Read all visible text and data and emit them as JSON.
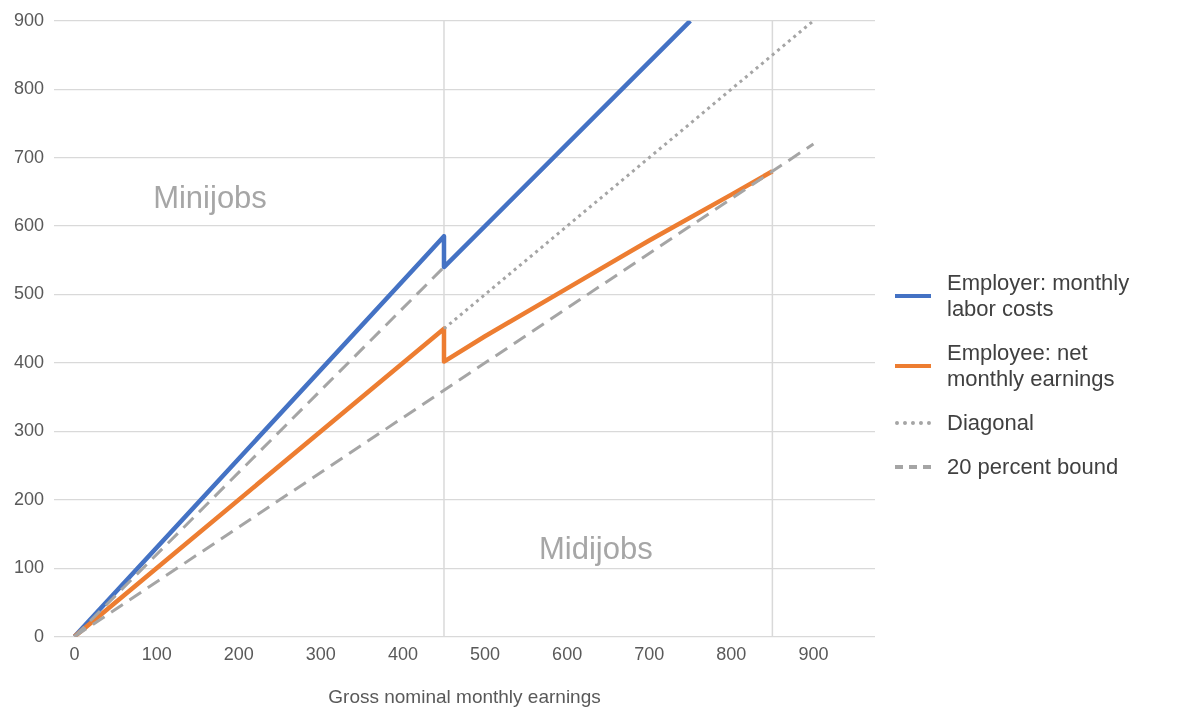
{
  "chart_data": {
    "type": "line",
    "xlabel": "Gross nominal monthly earnings",
    "xlim": [
      -25,
      975
    ],
    "xticks": [
      0,
      100,
      200,
      300,
      400,
      500,
      600,
      700,
      800,
      900
    ],
    "ylim": [
      0,
      900
    ],
    "yticks": [
      0,
      100,
      200,
      300,
      400,
      500,
      600,
      700,
      800,
      900
    ],
    "grid": "y",
    "legend": "right",
    "marker": "none",
    "series": [
      {
        "name": "Employer: monthly labor costs",
        "type": "line",
        "color": "#4472c4",
        "line_style": "solid",
        "x": [
          0,
          450,
          450,
          750
        ],
        "values": [
          0,
          585,
          540,
          900
        ]
      },
      {
        "name": "Employee: net monthly earnings",
        "type": "line",
        "color": "#ed7d31",
        "line_style": "solid",
        "x": [
          0,
          450,
          450,
          500,
          600,
          700,
          800,
          850
        ],
        "values": [
          0,
          450,
          402,
          439,
          509,
          579,
          646,
          680
        ]
      },
      {
        "name": "Diagonal",
        "type": "line",
        "color": "#a5a5a5",
        "line_style": "dotted",
        "x": [
          450,
          900
        ],
        "values": [
          450,
          900
        ]
      },
      {
        "name": "20 percent bound",
        "type": "line",
        "color": "#a5a5a5",
        "line_style": "dashed",
        "x": [
          0,
          450
        ],
        "values": [
          0,
          540
        ]
      },
      {
        "type": "line",
        "color": "#a5a5a5",
        "line_style": "dashed",
        "x": [
          0,
          900
        ],
        "values": [
          0,
          720
        ]
      }
    ],
    "ref_lines": [
      {
        "axis": "x",
        "value": 450,
        "color": "#d9d9d9"
      },
      {
        "axis": "x",
        "value": 850,
        "color": "#d9d9d9"
      }
    ],
    "annotations": [
      "Minijobs",
      "Midijobs"
    ]
  }
}
